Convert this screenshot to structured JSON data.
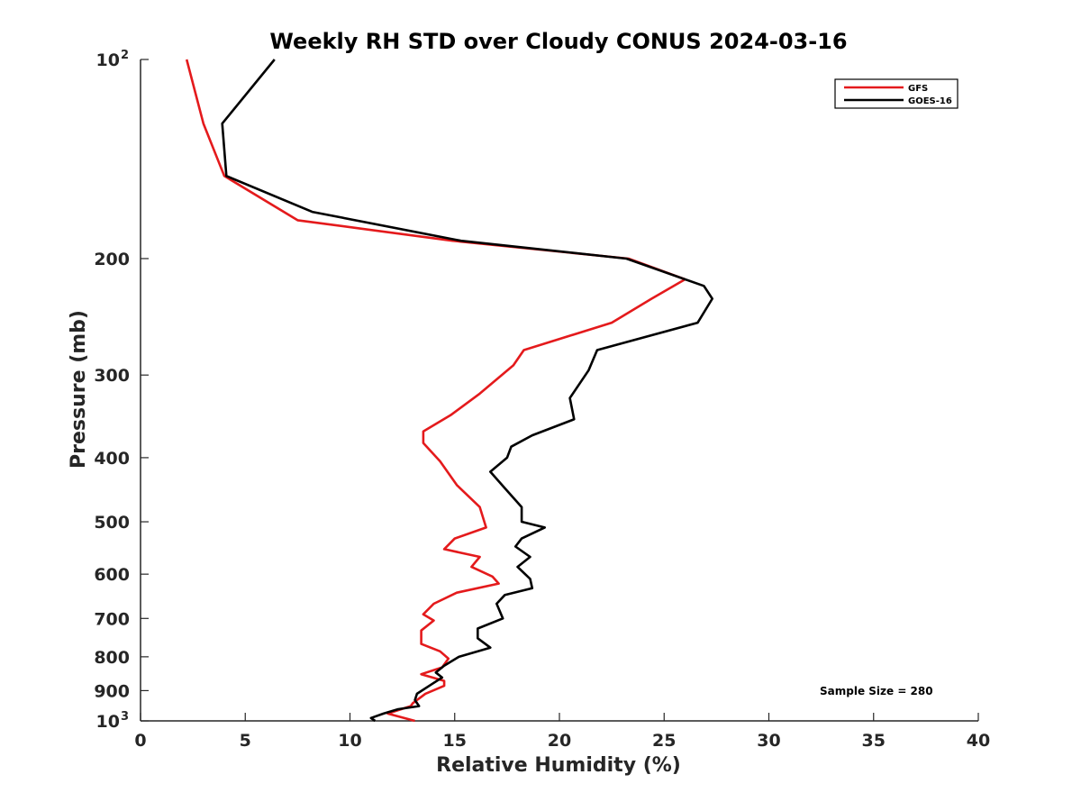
{
  "chart_data": {
    "type": "line",
    "title": "Weekly RH STD over Cloudy CONUS 2024-03-16",
    "xlabel": "Relative Humidity (%)",
    "ylabel": "Pressure (mb)",
    "xlim": [
      0,
      40
    ],
    "ylim": [
      100,
      1000
    ],
    "y_scale": "log",
    "y_reversed": true,
    "x_ticks": [
      0,
      5,
      10,
      15,
      20,
      25,
      30,
      35,
      40
    ],
    "y_ticks": [
      {
        "value": 100,
        "label": "10",
        "sup": "2"
      },
      {
        "value": 200,
        "label": "200",
        "sup": ""
      },
      {
        "value": 300,
        "label": "300",
        "sup": ""
      },
      {
        "value": 400,
        "label": "400",
        "sup": ""
      },
      {
        "value": 500,
        "label": "500",
        "sup": ""
      },
      {
        "value": 600,
        "label": "600",
        "sup": ""
      },
      {
        "value": 700,
        "label": "700",
        "sup": ""
      },
      {
        "value": 800,
        "label": "800",
        "sup": ""
      },
      {
        "value": 900,
        "label": "900",
        "sup": ""
      },
      {
        "value": 1000,
        "label": "10",
        "sup": "3"
      }
    ],
    "legend_position": "top-right",
    "grid": false,
    "annotation": "Sample Size = 280",
    "series": [
      {
        "name": "GFS",
        "color": "#e41a1c",
        "points": [
          [
            2.2,
            100
          ],
          [
            3.0,
            125
          ],
          [
            4.0,
            150
          ],
          [
            7.5,
            175
          ],
          [
            14.9,
            188
          ],
          [
            23.3,
            200
          ],
          [
            26.0,
            215
          ],
          [
            24.4,
            230
          ],
          [
            22.5,
            250
          ],
          [
            18.3,
            275
          ],
          [
            17.8,
            290
          ],
          [
            16.2,
            320
          ],
          [
            14.8,
            345
          ],
          [
            13.5,
            365
          ],
          [
            13.5,
            380
          ],
          [
            14.3,
            405
          ],
          [
            15.1,
            440
          ],
          [
            16.2,
            475
          ],
          [
            16.5,
            510
          ],
          [
            15.0,
            530
          ],
          [
            14.5,
            550
          ],
          [
            16.2,
            565
          ],
          [
            15.8,
            585
          ],
          [
            16.8,
            605
          ],
          [
            17.1,
            620
          ],
          [
            15.1,
            640
          ],
          [
            14.0,
            665
          ],
          [
            13.5,
            690
          ],
          [
            14.0,
            705
          ],
          [
            13.4,
            730
          ],
          [
            13.4,
            765
          ],
          [
            14.3,
            785
          ],
          [
            14.7,
            805
          ],
          [
            14.4,
            830
          ],
          [
            13.4,
            850
          ],
          [
            14.5,
            870
          ],
          [
            14.5,
            885
          ],
          [
            13.6,
            910
          ],
          [
            13.0,
            940
          ],
          [
            12.9,
            950
          ],
          [
            11.8,
            975
          ],
          [
            13.1,
            1000
          ]
        ]
      },
      {
        "name": "GOES-16",
        "color": "#000000",
        "points": [
          [
            6.4,
            100
          ],
          [
            3.9,
            125
          ],
          [
            4.1,
            150
          ],
          [
            8.2,
            170
          ],
          [
            15.3,
            188
          ],
          [
            23.2,
            200
          ],
          [
            26.9,
            220
          ],
          [
            27.3,
            230
          ],
          [
            26.6,
            250
          ],
          [
            21.8,
            275
          ],
          [
            21.4,
            295
          ],
          [
            20.5,
            325
          ],
          [
            20.7,
            350
          ],
          [
            18.7,
            370
          ],
          [
            17.7,
            385
          ],
          [
            17.5,
            400
          ],
          [
            16.7,
            420
          ],
          [
            17.4,
            445
          ],
          [
            18.2,
            475
          ],
          [
            18.2,
            500
          ],
          [
            19.3,
            510
          ],
          [
            18.2,
            530
          ],
          [
            17.9,
            545
          ],
          [
            18.6,
            565
          ],
          [
            18.0,
            585
          ],
          [
            18.6,
            610
          ],
          [
            18.7,
            630
          ],
          [
            17.4,
            645
          ],
          [
            17.0,
            665
          ],
          [
            17.3,
            700
          ],
          [
            16.1,
            725
          ],
          [
            16.1,
            750
          ],
          [
            16.7,
            775
          ],
          [
            15.2,
            800
          ],
          [
            14.5,
            825
          ],
          [
            14.1,
            845
          ],
          [
            14.4,
            860
          ],
          [
            13.9,
            880
          ],
          [
            13.2,
            910
          ],
          [
            13.1,
            930
          ],
          [
            13.3,
            950
          ],
          [
            12.3,
            960
          ],
          [
            11.6,
            975
          ],
          [
            11.0,
            990
          ],
          [
            11.2,
            1000
          ]
        ]
      }
    ]
  }
}
